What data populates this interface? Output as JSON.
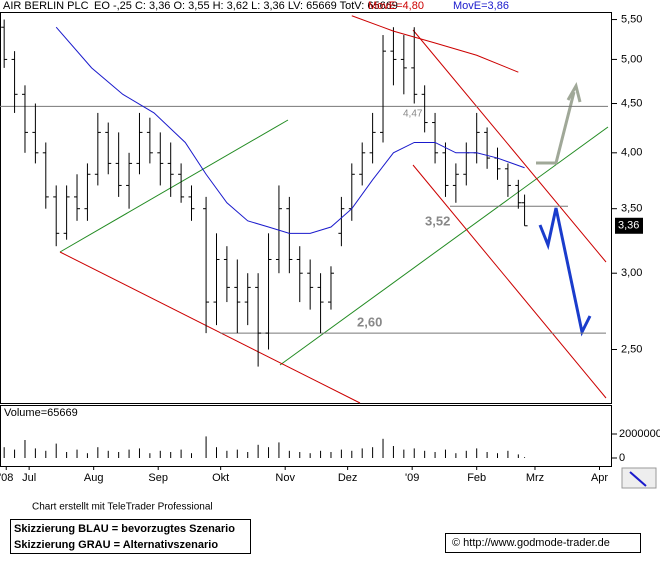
{
  "header": {
    "title": "AIR BERLIN PLC",
    "info": "EO -,25 C: 3,36 O: 3,55 H: 3,62 L: 3,36 LV: 65669 TotV: 65669"
  },
  "chart_data": {
    "type": "ohlc",
    "x": [
      -12,
      -7,
      -2,
      3,
      8,
      13,
      18,
      23,
      28,
      33,
      38,
      43,
      48,
      53,
      58,
      63,
      68,
      73,
      78,
      85,
      90,
      95,
      100,
      105,
      110,
      115,
      120,
      125,
      130,
      135,
      140,
      145,
      150,
      155,
      160,
      165,
      170,
      175,
      180,
      185,
      190,
      195,
      200,
      205,
      210,
      215,
      220,
      225,
      230,
      235,
      238
    ],
    "open": [
      5.4,
      5.0,
      4.6,
      4.2,
      4.0,
      3.6,
      3.3,
      3.6,
      3.5,
      3.8,
      4.2,
      3.9,
      3.7,
      3.9,
      4.2,
      4.0,
      3.9,
      3.8,
      3.6,
      3.5,
      2.8,
      3.1,
      2.9,
      2.8,
      2.9,
      2.6,
      3.1,
      3.5,
      3.1,
      3.0,
      2.9,
      2.8,
      3.3,
      3.5,
      3.8,
      4.0,
      4.2,
      5.1,
      5.0,
      4.9,
      4.6,
      4.3,
      4.0,
      3.7,
      3.8,
      4.0,
      4.2,
      3.95,
      3.85,
      3.7,
      3.55
    ],
    "high": [
      5.5,
      5.1,
      4.7,
      4.5,
      4.1,
      3.7,
      3.7,
      3.8,
      3.9,
      4.4,
      4.3,
      4.2,
      4.0,
      4.4,
      4.35,
      4.2,
      4.1,
      3.9,
      3.7,
      3.6,
      3.3,
      3.2,
      3.1,
      3.0,
      3.0,
      3.3,
      3.7,
      3.6,
      3.2,
      3.1,
      3.0,
      3.05,
      3.6,
      3.9,
      4.1,
      4.4,
      5.3,
      5.4,
      5.3,
      5.4,
      4.7,
      4.4,
      4.1,
      3.9,
      4.1,
      4.4,
      4.25,
      4.05,
      3.9,
      3.75,
      3.62
    ],
    "low": [
      4.9,
      4.4,
      4.0,
      3.9,
      3.5,
      3.2,
      3.25,
      3.4,
      3.4,
      3.7,
      3.8,
      3.6,
      3.5,
      3.8,
      3.9,
      3.7,
      3.6,
      3.55,
      3.4,
      2.6,
      2.65,
      2.8,
      2.6,
      2.65,
      2.4,
      2.5,
      3.0,
      3.0,
      2.8,
      2.75,
      2.6,
      2.75,
      3.2,
      3.4,
      3.7,
      3.9,
      4.1,
      4.7,
      4.6,
      4.5,
      4.2,
      3.9,
      3.6,
      3.55,
      3.7,
      3.9,
      3.85,
      3.75,
      3.6,
      3.5,
      3.36
    ],
    "close": [
      5.0,
      4.6,
      4.2,
      4.0,
      3.6,
      3.3,
      3.6,
      3.5,
      3.8,
      4.2,
      3.9,
      3.7,
      3.9,
      4.2,
      4.0,
      3.9,
      3.8,
      3.6,
      3.5,
      2.8,
      3.1,
      2.9,
      2.8,
      2.9,
      2.6,
      3.1,
      3.5,
      3.1,
      3.0,
      2.9,
      2.8,
      3.0,
      3.5,
      3.8,
      4.0,
      4.2,
      5.1,
      5.0,
      4.9,
      4.6,
      4.3,
      4.0,
      3.7,
      3.8,
      4.0,
      4.2,
      3.95,
      3.85,
      3.7,
      3.55,
      3.36
    ],
    "series": [
      {
        "name": "MovE=4,80",
        "color": "#cc0000",
        "x": [
          155,
          175,
          195,
          215,
          235
        ],
        "values": [
          5.55,
          5.35,
          5.2,
          5.05,
          4.85
        ]
      },
      {
        "name": "MovE=3,86",
        "color": "#1a1acc",
        "x": [
          13,
          30,
          45,
          60,
          75,
          85,
          95,
          105,
          115,
          125,
          135,
          145,
          155,
          165,
          175,
          185,
          195,
          205,
          215,
          225,
          238
        ],
        "values": [
          5.4,
          4.9,
          4.6,
          4.4,
          4.1,
          3.8,
          3.55,
          3.4,
          3.35,
          3.3,
          3.3,
          3.35,
          3.5,
          3.75,
          4.0,
          4.1,
          4.1,
          4.0,
          4.0,
          3.95,
          3.86
        ]
      }
    ],
    "log_scale": true,
    "ylim": [
      2.2,
      5.6
    ],
    "yticks": [
      {
        "value": 2.5,
        "label": "2,50"
      },
      {
        "value": 3.0,
        "label": "3,00"
      },
      {
        "value": 3.5,
        "label": "3,50"
      },
      {
        "value": 4.0,
        "label": "4,00"
      },
      {
        "value": 4.5,
        "label": "4,50"
      },
      {
        "value": 5.0,
        "label": "5,00"
      },
      {
        "value": 5.5,
        "label": "5,50"
      }
    ],
    "xlim": [
      -14,
      280
    ],
    "xticks": [
      {
        "value": -11,
        "label": "'08"
      },
      {
        "value": 0,
        "label": "Jul"
      },
      {
        "value": 31,
        "label": "Aug"
      },
      {
        "value": 62,
        "label": "Sep"
      },
      {
        "value": 92,
        "label": "Okt"
      },
      {
        "value": 123,
        "label": "Nov"
      },
      {
        "value": 153,
        "label": "Dez"
      },
      {
        "value": 184,
        "label": "'09"
      },
      {
        "value": 215,
        "label": "Feb"
      },
      {
        "value": 243,
        "label": "Mrz"
      },
      {
        "value": 274,
        "label": "Apr"
      }
    ],
    "levels": [
      {
        "value": 4.47,
        "label": "4,47"
      },
      {
        "value": 3.52,
        "label": "3,52"
      },
      {
        "value": 2.6,
        "label": "2,60"
      }
    ],
    "last_price": {
      "value": 3.36,
      "label": "3,36"
    },
    "volume": {
      "title": "Volume=65669",
      "values": [
        900000,
        700000,
        1500000,
        800000,
        600000,
        1200000,
        500000,
        700000,
        400000,
        900000,
        600000,
        500000,
        700000,
        800000,
        400000,
        600000,
        500000,
        700000,
        400000,
        1800000,
        900000,
        600000,
        700000,
        500000,
        1100000,
        900000,
        1300000,
        600000,
        500000,
        400000,
        600000,
        500000,
        700000,
        600000,
        800000,
        900000,
        1600000,
        1000000,
        700000,
        800000,
        600000,
        500000,
        700000,
        400000,
        600000,
        800000,
        500000,
        400000,
        600000,
        300000,
        65669
      ],
      "ylim": [
        0,
        4250000
      ],
      "yticks": [
        0,
        2000000
      ]
    }
  },
  "footer": {
    "credit": "Chart erstellt mit TeleTrader Professional",
    "legend_blue": "Skizzierung BLAU = bevorzugtes Szenario",
    "legend_grey": "Skizzierung GRAU = Alternativszenario",
    "source": "© http://www.godmode-trader.de"
  }
}
